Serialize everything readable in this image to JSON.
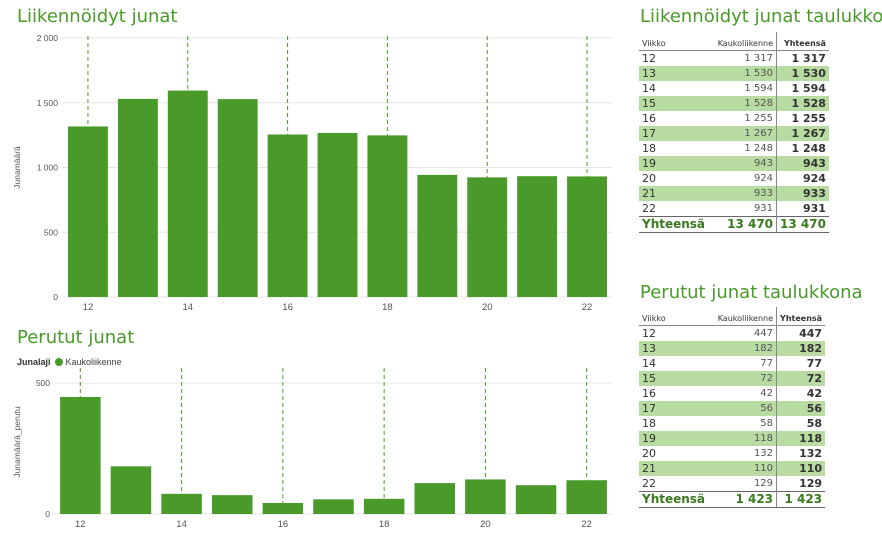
{
  "chart_data": [
    {
      "type": "bar",
      "title": "Liikennöidyt junat",
      "ylabel": "Junamäärä",
      "xlabel": "",
      "categories": [
        "12",
        "13",
        "14",
        "15",
        "16",
        "17",
        "18",
        "19",
        "20",
        "21",
        "22"
      ],
      "values": [
        1317,
        1530,
        1594,
        1528,
        1255,
        1267,
        1248,
        943,
        924,
        933,
        931
      ],
      "ylim": [
        0,
        2000
      ],
      "yticks": [
        "0",
        "500",
        "1 000",
        "1 500",
        "2 000"
      ],
      "xticks": [
        "12",
        "14",
        "16",
        "18",
        "20",
        "22"
      ],
      "color": "#4a9a2a",
      "grid": true
    },
    {
      "type": "bar",
      "title": "Perutut junat",
      "ylabel": "Junamäärä_perutu",
      "xlabel": "",
      "legend_title": "Junalaji",
      "series_name": "Kaukoliikenne",
      "categories": [
        "12",
        "13",
        "14",
        "15",
        "16",
        "17",
        "18",
        "19",
        "20",
        "21",
        "22"
      ],
      "values": [
        447,
        182,
        77,
        72,
        42,
        56,
        58,
        118,
        132,
        110,
        129
      ],
      "ylim": [
        0,
        550
      ],
      "yticks": [
        "0",
        "500"
      ],
      "xticks": [
        "12",
        "14",
        "16",
        "18",
        "20",
        "22"
      ],
      "color": "#4a9a2a",
      "grid": true
    }
  ],
  "table1": {
    "title": "Liikennöidyt junat taulukkona",
    "headers": [
      "Viikko",
      "Kaukoliikenne",
      "Yhteensä"
    ],
    "rows": [
      [
        "12",
        "1 317",
        "1 317"
      ],
      [
        "13",
        "1 530",
        "1 530"
      ],
      [
        "14",
        "1 594",
        "1 594"
      ],
      [
        "15",
        "1 528",
        "1 528"
      ],
      [
        "16",
        "1 255",
        "1 255"
      ],
      [
        "17",
        "1 267",
        "1 267"
      ],
      [
        "18",
        "1 248",
        "1 248"
      ],
      [
        "19",
        "943",
        "943"
      ],
      [
        "20",
        "924",
        "924"
      ],
      [
        "21",
        "933",
        "933"
      ],
      [
        "22",
        "931",
        "931"
      ]
    ],
    "total": [
      "Yhteensä",
      "13 470",
      "13 470"
    ]
  },
  "table2": {
    "title": "Perutut junat taulukkona",
    "headers": [
      "Viikko",
      "Kaukoliikenne",
      "Yhteensä"
    ],
    "rows": [
      [
        "12",
        "447",
        "447"
      ],
      [
        "13",
        "182",
        "182"
      ],
      [
        "14",
        "77",
        "77"
      ],
      [
        "15",
        "72",
        "72"
      ],
      [
        "16",
        "42",
        "42"
      ],
      [
        "17",
        "56",
        "56"
      ],
      [
        "18",
        "58",
        "58"
      ],
      [
        "19",
        "118",
        "118"
      ],
      [
        "20",
        "132",
        "132"
      ],
      [
        "21",
        "110",
        "110"
      ],
      [
        "22",
        "129",
        "129"
      ]
    ],
    "total": [
      "Yhteensä",
      "1 423",
      "1 423"
    ]
  },
  "colors": {
    "accent": "#4a9a2a",
    "band": "#b7dba0"
  }
}
